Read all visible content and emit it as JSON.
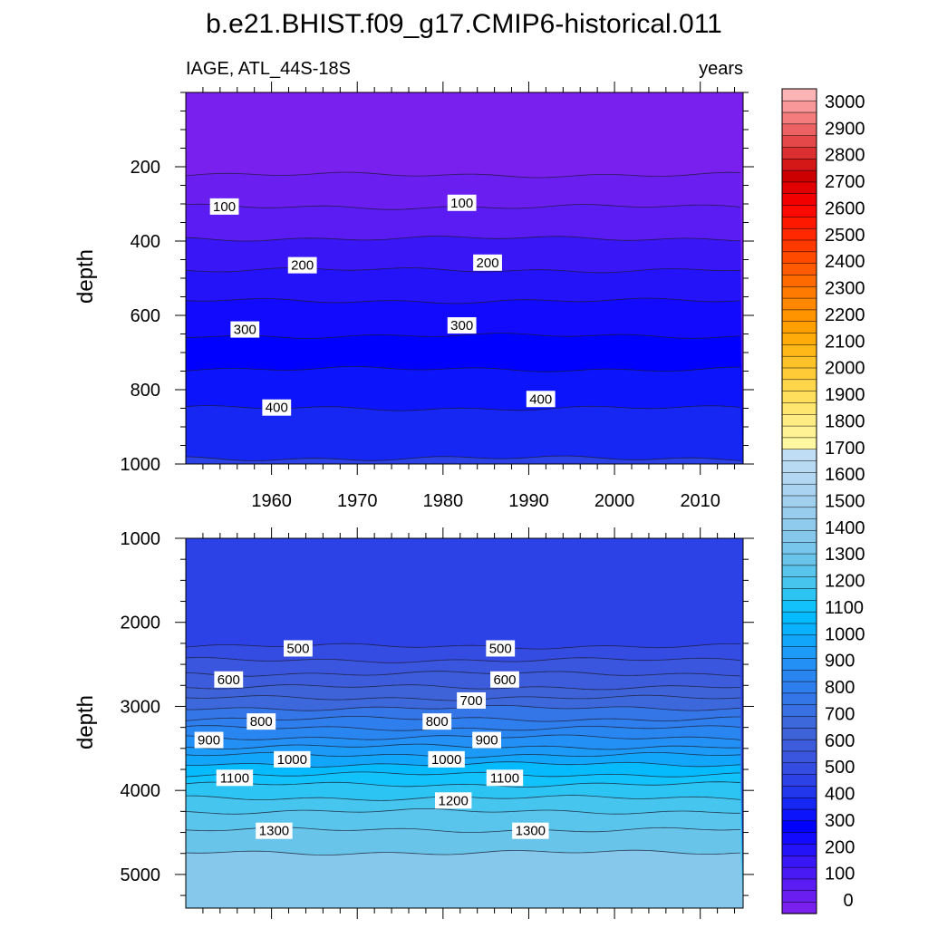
{
  "title": "b.e21.BHIST.f09_g17.CMIP6-historical.011",
  "chart_data": {
    "type": "contour",
    "variable": "IAGE",
    "region": "ATL_44S-18S",
    "left_string": "IAGE, ATL_44S-18S",
    "right_string": "years",
    "xaxis": {
      "range": [
        1950,
        2015
      ],
      "ticks": [
        1960,
        1970,
        1980,
        1990,
        2000,
        2010
      ],
      "tick_labels": [
        "1960",
        "1970",
        "1980",
        "1990",
        "2000",
        "2010"
      ]
    },
    "panels": [
      {
        "name": "upper",
        "ylabel": "depth",
        "ylim": [
          0,
          1000
        ],
        "yticks": [
          200,
          400,
          600,
          800,
          1000
        ],
        "ytick_labels": [
          "200",
          "400",
          "600",
          "800",
          "1000"
        ],
        "contours": [
          {
            "level": 50,
            "depth": 222
          },
          {
            "level": 100,
            "depth": 308
          },
          {
            "level": 150,
            "depth": 393
          },
          {
            "level": 200,
            "depth": 478
          },
          {
            "level": 250,
            "depth": 561
          },
          {
            "level": 300,
            "depth": 655
          },
          {
            "level": 350,
            "depth": 745
          },
          {
            "level": 400,
            "depth": 850
          },
          {
            "level": 450,
            "depth": 985
          }
        ],
        "contour_labels": [
          {
            "text": "100",
            "x": 1954.5,
            "depth": 307
          },
          {
            "text": "100",
            "x": 1982.2,
            "depth": 297
          },
          {
            "text": "200",
            "x": 1963.6,
            "depth": 465
          },
          {
            "text": "200",
            "x": 1985.2,
            "depth": 458
          },
          {
            "text": "300",
            "x": 1956.9,
            "depth": 638
          },
          {
            "text": "300",
            "x": 1982.2,
            "depth": 627
          },
          {
            "text": "400",
            "x": 1960.6,
            "depth": 848
          },
          {
            "text": "400",
            "x": 1991.4,
            "depth": 825
          }
        ]
      },
      {
        "name": "lower",
        "ylabel": "depth",
        "ylim": [
          1000,
          5400
        ],
        "yticks": [
          1000,
          2000,
          3000,
          4000,
          5000
        ],
        "ytick_labels": [
          "1000",
          "2000",
          "3000",
          "4000",
          "5000"
        ],
        "contours": [
          {
            "level": 500,
            "depth": 2285
          },
          {
            "level": 550,
            "depth": 2450
          },
          {
            "level": 600,
            "depth": 2610
          },
          {
            "level": 650,
            "depth": 2770
          },
          {
            "level": 700,
            "depth": 2900
          },
          {
            "level": 750,
            "depth": 3020
          },
          {
            "level": 800,
            "depth": 3150
          },
          {
            "level": 850,
            "depth": 3260
          },
          {
            "level": 900,
            "depth": 3370
          },
          {
            "level": 950,
            "depth": 3480
          },
          {
            "level": 1000,
            "depth": 3580
          },
          {
            "level": 1050,
            "depth": 3690
          },
          {
            "level": 1100,
            "depth": 3810
          },
          {
            "level": 1150,
            "depth": 3930
          },
          {
            "level": 1200,
            "depth": 4090
          },
          {
            "level": 1250,
            "depth": 4250
          },
          {
            "level": 1300,
            "depth": 4470
          },
          {
            "level": 1350,
            "depth": 4740
          }
        ],
        "contour_labels": [
          {
            "text": "500",
            "x": 1963.1,
            "depth": 2310
          },
          {
            "text": "500",
            "x": 1986.7,
            "depth": 2310
          },
          {
            "text": "600",
            "x": 1955.0,
            "depth": 2680
          },
          {
            "text": "600",
            "x": 1987.2,
            "depth": 2680
          },
          {
            "text": "700",
            "x": 1983.3,
            "depth": 2930
          },
          {
            "text": "800",
            "x": 1958.8,
            "depth": 3180
          },
          {
            "text": "800",
            "x": 1979.3,
            "depth": 3180
          },
          {
            "text": "900",
            "x": 1952.7,
            "depth": 3400
          },
          {
            "text": "900",
            "x": 1985.1,
            "depth": 3400
          },
          {
            "text": "1000",
            "x": 1962.4,
            "depth": 3630
          },
          {
            "text": "1000",
            "x": 1980.4,
            "depth": 3630
          },
          {
            "text": "1100",
            "x": 1955.7,
            "depth": 3850
          },
          {
            "text": "1100",
            "x": 1987.2,
            "depth": 3850
          },
          {
            "text": "1200",
            "x": 1981.2,
            "depth": 4120
          },
          {
            "text": "1300",
            "x": 1960.3,
            "depth": 4480
          },
          {
            "text": "1300",
            "x": 1990.2,
            "depth": 4480
          }
        ]
      }
    ],
    "colorbar": {
      "labels": [
        "0",
        "100",
        "200",
        "300",
        "400",
        "500",
        "600",
        "700",
        "800",
        "900",
        "1000",
        "1100",
        "1200",
        "1300",
        "1400",
        "1500",
        "1600",
        "1700",
        "1800",
        "1900",
        "2000",
        "2100",
        "2200",
        "2300",
        "2400",
        "2500",
        "2600",
        "2700",
        "2800",
        "2900",
        "3000"
      ],
      "colors": [
        "#7a20ee",
        "#6a1ef0",
        "#5a1cf2",
        "#4a1af4",
        "#3816f6",
        "#2412f9",
        "#120afc",
        "#0000ff",
        "#0b14fb",
        "#1626f3",
        "#2236ec",
        "#2c42e6",
        "#354ce2",
        "#3a55de",
        "#3c5cdb",
        "#3e62d8",
        "#3c68dc",
        "#386fe2",
        "#3476e8",
        "#2f7eed",
        "#2986f1",
        "#2390f5",
        "#1b9af8",
        "#12a6fb",
        "#0ab2fd",
        "#06bbfd",
        "#12c2fa",
        "#2cc5f3",
        "#46c6ee",
        "#5ac5ec",
        "#69c4ea",
        "#78c6ec",
        "#85c8ec",
        "#8fcbed",
        "#98cdee",
        "#a1d0ef",
        "#a9d3f0",
        "#b1d7f2",
        "#b8daf3",
        "#bfddf4",
        "#fff8a0",
        "#fff294",
        "#ffec82",
        "#ffe66e",
        "#ffdf5c",
        "#ffd64a",
        "#ffcc38",
        "#ffc228",
        "#ffb818",
        "#ffac0a",
        "#ffa000",
        "#ff9400",
        "#ff8800",
        "#ff7a00",
        "#ff6a00",
        "#ff5a00",
        "#ff4a00",
        "#ff3a00",
        "#ff2800",
        "#ff1800",
        "#ff0800",
        "#f20000",
        "#e00000",
        "#cc0000",
        "#d41818",
        "#dc3030",
        "#e44848",
        "#ec6262",
        "#f47c7c",
        "#f89898",
        "#fcb4b4"
      ]
    }
  }
}
